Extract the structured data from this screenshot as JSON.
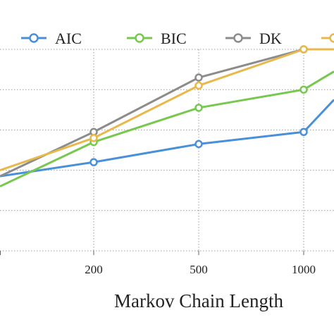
{
  "chart_data": {
    "type": "line",
    "xlabel": "Markov Chain Length",
    "ylabel": "",
    "title": "",
    "categories": [
      "",
      "200",
      "500",
      "1000",
      ""
    ],
    "grid": true,
    "legend_position": "top",
    "ylim": [
      0,
      5
    ],
    "series": [
      {
        "name": "AIC",
        "color": "#4a90d9",
        "values": [
          1.85,
          2.2,
          2.65,
          2.95,
          3.75
        ]
      },
      {
        "name": "BIC",
        "color": "#78c850",
        "values": [
          1.6,
          2.7,
          3.55,
          4.0,
          4.45
        ]
      },
      {
        "name": "DK",
        "color": "#8c8c8c",
        "values": [
          1.85,
          2.95,
          4.3,
          5.0,
          5.0
        ]
      },
      {
        "name": "",
        "color": "#e8b84a",
        "values": [
          2.0,
          2.8,
          4.1,
          5.0,
          5.0
        ]
      }
    ]
  }
}
